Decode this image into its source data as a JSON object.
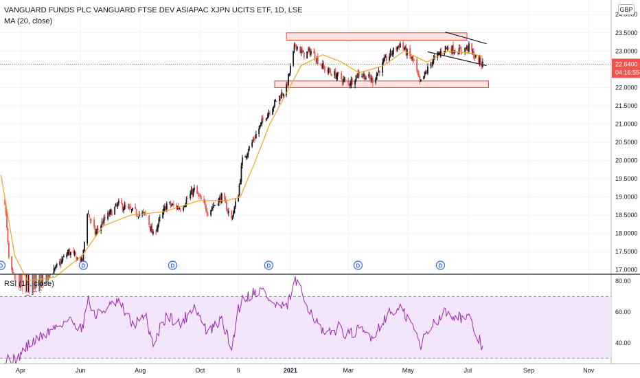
{
  "header": {
    "title": "VANGUARD FUNDS PLC VANGUARD FTSE DEV ASIAPAC XJPN UCITS ETF, 1D, LSE",
    "indicator": "MA (20, close)",
    "currency": "GBP"
  },
  "price_tag": {
    "value": "22.6400",
    "countdown": "04:16:55"
  },
  "rsi_label": "RSI (14, close)",
  "colors": {
    "up": "#131722",
    "down": "#ef5350",
    "ma": "#f7a21b",
    "rsi": "#9c27b0",
    "rsi_band": "#f2e6fb",
    "zone_fill": "#ffd8d8",
    "zone_border": "#e53935",
    "price_line": "#ef5350",
    "grid": "#f0f3fa",
    "axis_text": "#131722"
  },
  "chart_data": [
    {
      "type": "candlestick",
      "title": "VANGUARD FUNDS PLC VANGUARD FTSE DEV ASIAPAC XJPN UCITS ETF, 1D, LSE",
      "ylim": [
        16.9,
        24.4
      ],
      "y_ticks": [
        "24.0000",
        "23.5000",
        "23.0000",
        "22.5000",
        "22.0000",
        "21.5000",
        "21.0000",
        "20.5000",
        "20.0000",
        "19.5000",
        "19.0000",
        "18.5000",
        "18.0000",
        "17.5000",
        "17.0000"
      ],
      "x_ticks": [
        "Apr",
        "Jun",
        "Aug",
        "Oct",
        "9",
        "2021",
        "Mar",
        "May",
        "Jul",
        "Sep",
        "Nov"
      ],
      "dividend_marker": "D",
      "dividend_dates": [
        "2020-03-12",
        "2020-06-04",
        "2020-09-03",
        "2020-12-10",
        "2021-03-11",
        "2021-06-03"
      ],
      "last_price": 22.64,
      "series_points": [
        [
          "2020-03-16",
          18.9
        ],
        [
          "2020-03-20",
          17.3
        ],
        [
          "2020-03-26",
          16.5
        ],
        [
          "2020-04-08",
          16.2
        ],
        [
          "2020-04-22",
          16.4
        ],
        [
          "2020-05-06",
          17.0
        ],
        [
          "2020-05-20",
          17.5
        ],
        [
          "2020-06-03",
          17.2
        ],
        [
          "2020-06-08",
          18.6
        ],
        [
          "2020-06-16",
          18.0
        ],
        [
          "2020-06-26",
          18.4
        ],
        [
          "2020-07-10",
          18.8
        ],
        [
          "2020-07-24",
          18.6
        ],
        [
          "2020-08-07",
          18.5
        ],
        [
          "2020-08-14",
          17.95
        ],
        [
          "2020-08-28",
          18.8
        ],
        [
          "2020-09-11",
          18.7
        ],
        [
          "2020-09-25",
          19.2
        ],
        [
          "2020-10-09",
          18.6
        ],
        [
          "2020-10-23",
          19.0
        ],
        [
          "2020-11-02",
          18.4
        ],
        [
          "2020-11-09",
          19.1
        ],
        [
          "2020-11-13",
          20.0
        ],
        [
          "2020-11-25",
          20.6
        ],
        [
          "2020-12-04",
          21.1
        ],
        [
          "2020-12-14",
          21.5
        ],
        [
          "2020-12-28",
          22.0
        ],
        [
          "2021-01-06",
          23.2
        ],
        [
          "2021-01-14",
          22.9
        ],
        [
          "2021-01-22",
          23.0
        ],
        [
          "2021-02-05",
          22.5
        ],
        [
          "2021-02-19",
          22.3
        ],
        [
          "2021-03-01",
          22.1
        ],
        [
          "2021-03-12",
          22.4
        ],
        [
          "2021-03-26",
          22.2
        ],
        [
          "2021-04-09",
          22.8
        ],
        [
          "2021-04-23",
          23.2
        ],
        [
          "2021-05-07",
          22.7
        ],
        [
          "2021-05-13",
          22.1
        ],
        [
          "2021-05-25",
          22.7
        ],
        [
          "2021-06-08",
          23.1
        ],
        [
          "2021-06-22",
          23.0
        ],
        [
          "2021-07-02",
          23.1
        ],
        [
          "2021-07-09",
          22.8
        ],
        [
          "2021-07-16",
          22.64
        ]
      ],
      "ma_points": [
        [
          "2020-03-12",
          19.6
        ],
        [
          "2020-03-26",
          17.4
        ],
        [
          "2020-04-08",
          16.7
        ],
        [
          "2020-05-06",
          16.8
        ],
        [
          "2020-06-03",
          17.4
        ],
        [
          "2020-06-24",
          18.2
        ],
        [
          "2020-07-22",
          18.5
        ],
        [
          "2020-08-26",
          18.6
        ],
        [
          "2020-09-30",
          18.9
        ],
        [
          "2020-10-28",
          18.9
        ],
        [
          "2020-11-11",
          19.0
        ],
        [
          "2020-11-25",
          19.9
        ],
        [
          "2020-12-11",
          21.0
        ],
        [
          "2020-12-29",
          21.9
        ],
        [
          "2021-01-12",
          22.6
        ],
        [
          "2021-02-03",
          22.9
        ],
        [
          "2021-02-22",
          22.7
        ],
        [
          "2021-03-12",
          22.4
        ],
        [
          "2021-04-06",
          22.6
        ],
        [
          "2021-04-27",
          23.0
        ],
        [
          "2021-05-20",
          22.7
        ],
        [
          "2021-06-10",
          23.0
        ],
        [
          "2021-07-02",
          22.95
        ],
        [
          "2021-07-16",
          22.85
        ]
      ],
      "zones": [
        {
          "x0": "2020-12-28",
          "x1": "2021-06-30",
          "y0": 23.3,
          "y1": 23.5
        },
        {
          "x0": "2020-12-16",
          "x1": "2021-07-22",
          "y0": 22.0,
          "y1": 22.18
        }
      ],
      "trendlines": [
        {
          "x0": "2021-06-08",
          "y0": 23.52,
          "x1": "2021-07-20",
          "y1": 23.2
        },
        {
          "x0": "2021-05-21",
          "y0": 22.98,
          "x1": "2021-07-20",
          "y1": 22.6
        }
      ]
    },
    {
      "type": "line",
      "title": "RSI (14, close)",
      "ylim": [
        27,
        84
      ],
      "y_ticks": [
        "80.00",
        "60.00",
        "40.00"
      ],
      "band": [
        30,
        70
      ],
      "points": [
        [
          "2020-03-12",
          24
        ],
        [
          "2020-03-20",
          31
        ],
        [
          "2020-03-26",
          28
        ],
        [
          "2020-04-08",
          38
        ],
        [
          "2020-04-22",
          44
        ],
        [
          "2020-05-06",
          50
        ],
        [
          "2020-05-20",
          55
        ],
        [
          "2020-06-03",
          49
        ],
        [
          "2020-06-08",
          69
        ],
        [
          "2020-06-16",
          57
        ],
        [
          "2020-06-26",
          62
        ],
        [
          "2020-07-10",
          66
        ],
        [
          "2020-07-24",
          52
        ],
        [
          "2020-08-07",
          56
        ],
        [
          "2020-08-14",
          40
        ],
        [
          "2020-08-28",
          58
        ],
        [
          "2020-09-11",
          52
        ],
        [
          "2020-09-25",
          64
        ],
        [
          "2020-10-09",
          46
        ],
        [
          "2020-10-23",
          55
        ],
        [
          "2020-11-02",
          36
        ],
        [
          "2020-11-09",
          62
        ],
        [
          "2020-11-13",
          68
        ],
        [
          "2020-11-25",
          73
        ],
        [
          "2020-12-04",
          74
        ],
        [
          "2020-12-14",
          65
        ],
        [
          "2020-12-28",
          62
        ],
        [
          "2021-01-06",
          81
        ],
        [
          "2021-01-14",
          70
        ],
        [
          "2021-01-22",
          60
        ],
        [
          "2021-02-05",
          44
        ],
        [
          "2021-02-19",
          50
        ],
        [
          "2021-03-01",
          45
        ],
        [
          "2021-03-12",
          48
        ],
        [
          "2021-03-26",
          44
        ],
        [
          "2021-04-09",
          58
        ],
        [
          "2021-04-23",
          62
        ],
        [
          "2021-05-07",
          50
        ],
        [
          "2021-05-13",
          38
        ],
        [
          "2021-05-25",
          52
        ],
        [
          "2021-06-08",
          60
        ],
        [
          "2021-06-22",
          57
        ],
        [
          "2021-07-02",
          55
        ],
        [
          "2021-07-09",
          46
        ],
        [
          "2021-07-16",
          38
        ]
      ]
    }
  ]
}
